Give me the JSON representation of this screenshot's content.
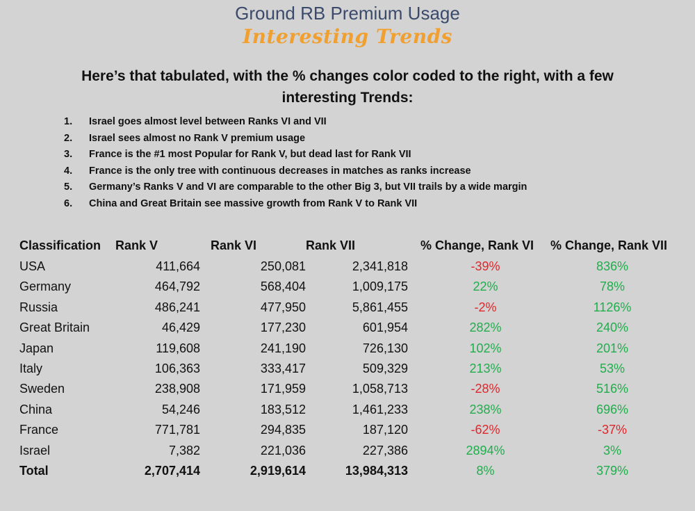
{
  "title": "Ground RB Premium Usage",
  "subtitle": "Interesting Trends",
  "intro": "Here’s that tabulated, with the % changes color coded to the right, with a few interesting Trends:",
  "trends": [
    {
      "num": "1.",
      "text": "Israel goes almost level between Ranks VI and VII"
    },
    {
      "num": "2.",
      "text": "Israel sees almost no Rank V premium usage"
    },
    {
      "num": "3.",
      "text": "France is the #1 most Popular for Rank V, but dead last for Rank VII"
    },
    {
      "num": "4.",
      "text": "France is the only tree with continuous decreases in matches as ranks increase"
    },
    {
      "num": "5.",
      "text": "Germany’s Ranks V and VI are comparable to the other Big 3, but VII trails by a wide margin"
    },
    {
      "num": "6.",
      "text": "China and Great Britain see massive growth from Rank V to Rank VII"
    }
  ],
  "colors": {
    "positive": "#1fae4b",
    "negative": "#e0262a",
    "title": "#3b4a6b",
    "subtitle": "#f0a030"
  },
  "table": {
    "headers": [
      "Classification",
      "Rank V",
      "Rank VI",
      "Rank VII",
      "% Change, Rank VI",
      "% Change, Rank VII"
    ],
    "rows": [
      {
        "name": "USA",
        "r5": "411,664",
        "r6": "250,081",
        "r7": "2,341,818",
        "p6": "-39%",
        "p7": "836%"
      },
      {
        "name": "Germany",
        "r5": "464,792",
        "r6": "568,404",
        "r7": "1,009,175",
        "p6": "22%",
        "p7": "78%"
      },
      {
        "name": "Russia",
        "r5": "486,241",
        "r6": "477,950",
        "r7": "5,861,455",
        "p6": "-2%",
        "p7": "1126%"
      },
      {
        "name": "Great Britain",
        "r5": "46,429",
        "r6": "177,230",
        "r7": "601,954",
        "p6": "282%",
        "p7": "240%"
      },
      {
        "name": "Japan",
        "r5": "119,608",
        "r6": "241,190",
        "r7": "726,130",
        "p6": "102%",
        "p7": "201%"
      },
      {
        "name": "Italy",
        "r5": "106,363",
        "r6": "333,417",
        "r7": "509,329",
        "p6": "213%",
        "p7": "53%"
      },
      {
        "name": "Sweden",
        "r5": "238,908",
        "r6": "171,959",
        "r7": "1,058,713",
        "p6": "-28%",
        "p7": "516%"
      },
      {
        "name": "China",
        "r5": "54,246",
        "r6": "183,512",
        "r7": "1,461,233",
        "p6": "238%",
        "p7": "696%"
      },
      {
        "name": "France",
        "r5": "771,781",
        "r6": "294,835",
        "r7": "187,120",
        "p6": "-62%",
        "p7": "-37%"
      },
      {
        "name": "Israel",
        "r5": "7,382",
        "r6": "221,036",
        "r7": "227,386",
        "p6": "2894%",
        "p7": "3%"
      }
    ],
    "total": {
      "name": "Total",
      "r5": "2,707,414",
      "r6": "2,919,614",
      "r7": "13,984,313",
      "p6": "8%",
      "p7": "379%"
    }
  }
}
